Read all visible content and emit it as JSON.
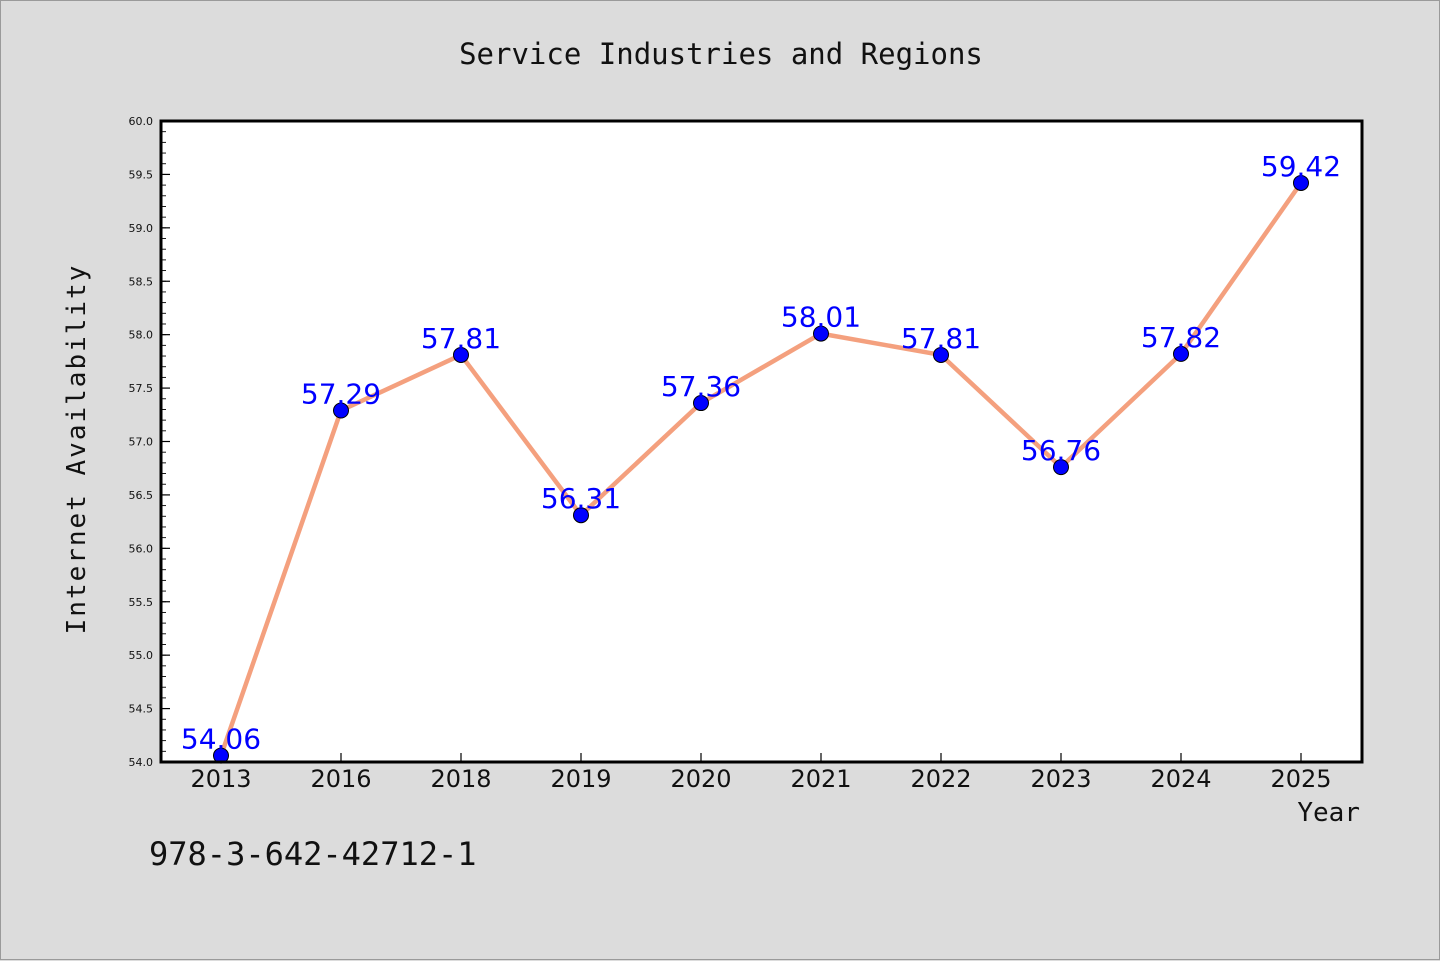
{
  "chart_data": {
    "type": "line",
    "title": "Service Industries and Regions",
    "xlabel": "Year",
    "ylabel": "Internet Availability",
    "categories": [
      "2013",
      "2016",
      "2018",
      "2019",
      "2020",
      "2021",
      "2022",
      "2023",
      "2024",
      "2025"
    ],
    "values": [
      54.06,
      57.29,
      57.81,
      56.31,
      57.36,
      58.01,
      57.81,
      56.76,
      57.82,
      59.42
    ],
    "data_labels": [
      "54.06",
      "57.29",
      "57.81",
      "56.31",
      "57.36",
      "58.01",
      "57.81",
      "56.76",
      "57.82",
      "59.42"
    ],
    "ylim": [
      54.0,
      60.0
    ],
    "yticks": [
      "54.0",
      "54.5",
      "55.0",
      "55.5",
      "56.0",
      "56.5",
      "57.0",
      "57.5",
      "58.0",
      "58.5",
      "59.0",
      "59.5",
      "60.0"
    ],
    "grid": false,
    "legend": "none",
    "colors": {
      "line": "#f4a07e",
      "marker": "#0000ff",
      "data_label": "#0000ff",
      "plot_background": "#ffffff",
      "figure_background": "#dcdcdc"
    }
  },
  "footer_text": "978-3-642-42712-1"
}
